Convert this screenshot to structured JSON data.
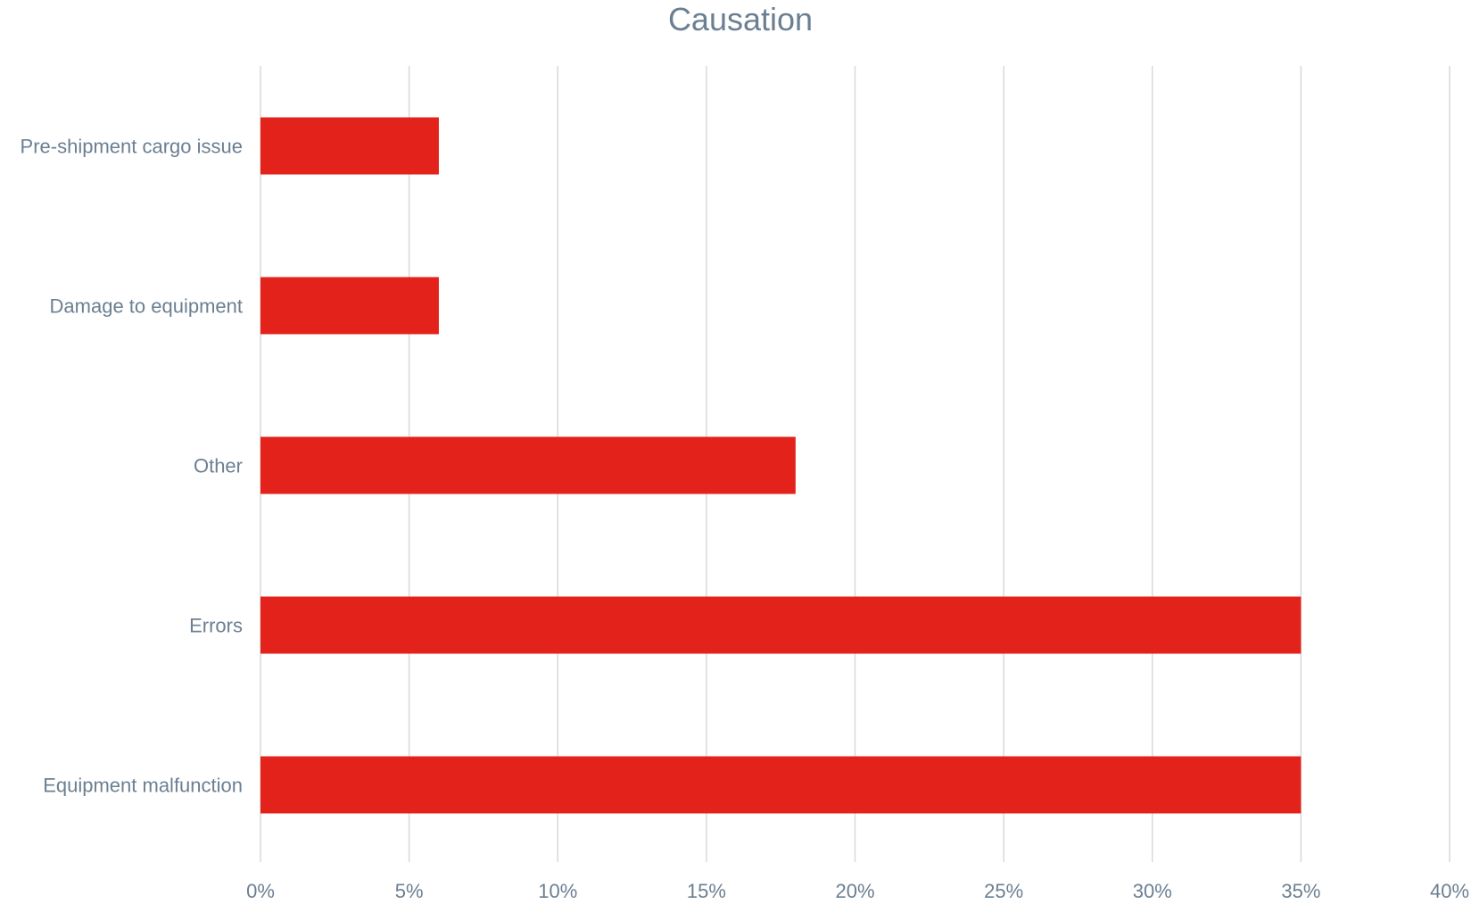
{
  "chart_data": {
    "type": "bar",
    "orientation": "horizontal",
    "title": "Causation",
    "categories": [
      "Pre-shipment cargo issue",
      "Damage to equipment",
      "Other",
      "Errors",
      "Equipment malfunction"
    ],
    "values": [
      6,
      6,
      18,
      35,
      35
    ],
    "xlim": [
      0,
      40
    ],
    "x_ticks": [
      0,
      5,
      10,
      15,
      20,
      25,
      30,
      35,
      40
    ],
    "x_tick_labels": [
      "0%",
      "5%",
      "10%",
      "15%",
      "20%",
      "25%",
      "30%",
      "35%",
      "40%"
    ],
    "xlabel": "",
    "ylabel": "",
    "grid": "vertical",
    "legend": "none",
    "bar_color": "#e3221b",
    "grid_color": "#d9d9d9",
    "text_color": "#6b7f92"
  }
}
